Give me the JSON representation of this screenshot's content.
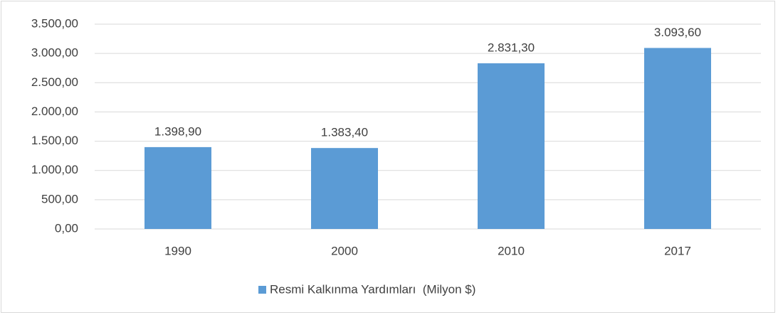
{
  "chart_data": {
    "type": "bar",
    "categories": [
      "1990",
      "2000",
      "2010",
      "2017"
    ],
    "series": [
      {
        "name": "Resmi Kalkınma Yardımları  (Milyon $)",
        "color": "#5b9bd5",
        "values": [
          1398.9,
          1383.4,
          2831.3,
          3093.6
        ],
        "value_labels": [
          "1.398,90",
          "1.383,40",
          "2.831,30",
          "3.093,60"
        ]
      }
    ],
    "ylim": [
      0,
      3500
    ],
    "yticks": [
      {
        "value": 0,
        "label": "0,00"
      },
      {
        "value": 500,
        "label": "500,00"
      },
      {
        "value": 1000,
        "label": "1.000,00"
      },
      {
        "value": 1500,
        "label": "1.500,00"
      },
      {
        "value": 2000,
        "label": "2.000,00"
      },
      {
        "value": 2500,
        "label": "2.500,00"
      },
      {
        "value": 3000,
        "label": "3.000,00"
      },
      {
        "value": 3500,
        "label": "3.500,00"
      }
    ],
    "grid": true,
    "legend": "bottom"
  }
}
